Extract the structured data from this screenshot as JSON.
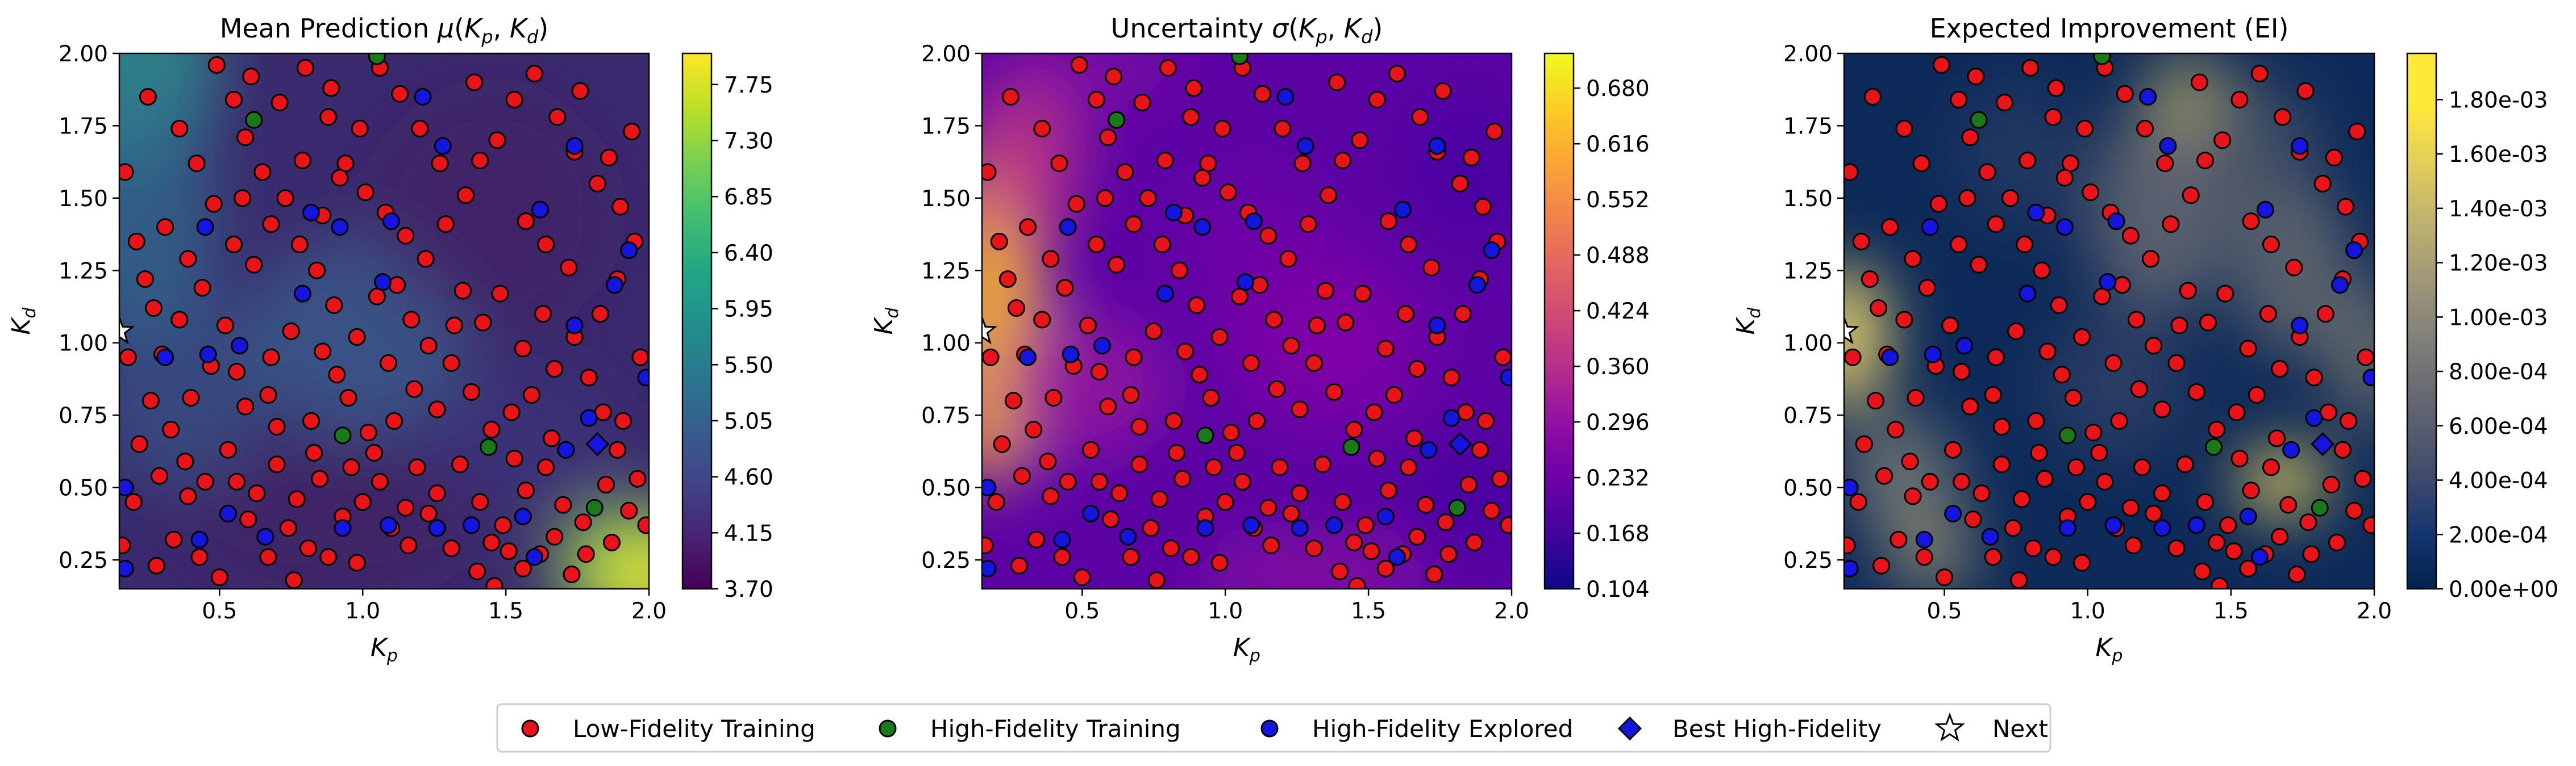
{
  "chart_data": [
    {
      "type": "heatmap",
      "title": "Mean Prediction μ(K_p, K_d)",
      "title_main": "Mean Prediction ",
      "title_math": "μ(",
      "xlabel": "K_p",
      "ylabel": "K_d",
      "xlim": [
        0.15,
        2.0
      ],
      "ylim": [
        0.15,
        2.0
      ],
      "x_ticks": [
        "0.5",
        "1.0",
        "1.5",
        "2.0"
      ],
      "y_ticks": [
        "0.25",
        "0.50",
        "0.75",
        "1.00",
        "1.25",
        "1.50",
        "1.75",
        "2.00"
      ],
      "colormap": "viridis",
      "colorbar_range": [
        3.7,
        8.0
      ],
      "colorbar_ticks": [
        "3.70",
        "4.15",
        "4.60",
        "5.05",
        "5.50",
        "5.95",
        "6.40",
        "6.85",
        "7.30",
        "7.75"
      ]
    },
    {
      "type": "heatmap",
      "title": "Uncertainty σ(K_p, K_d)",
      "title_main": "Uncertainty ",
      "title_math": "σ(",
      "xlabel": "K_p",
      "ylabel": "K_d",
      "xlim": [
        0.15,
        2.0
      ],
      "ylim": [
        0.15,
        2.0
      ],
      "x_ticks": [
        "0.5",
        "1.0",
        "1.5",
        "2.0"
      ],
      "y_ticks": [
        "0.25",
        "0.50",
        "0.75",
        "1.00",
        "1.25",
        "1.50",
        "1.75",
        "2.00"
      ],
      "colormap": "plasma",
      "colorbar_range": [
        0.104,
        0.72
      ],
      "colorbar_ticks": [
        "0.104",
        "0.168",
        "0.232",
        "0.296",
        "0.360",
        "0.424",
        "0.488",
        "0.552",
        "0.616",
        "0.680"
      ]
    },
    {
      "type": "heatmap",
      "title": "Expected Improvement (EI)",
      "xlabel": "K_p",
      "ylabel": "K_d",
      "xlim": [
        0.15,
        2.0
      ],
      "ylim": [
        0.15,
        2.0
      ],
      "x_ticks": [
        "0.5",
        "1.0",
        "1.5",
        "2.0"
      ],
      "y_ticks": [
        "0.25",
        "0.50",
        "0.75",
        "1.00",
        "1.25",
        "1.50",
        "1.75",
        "2.00"
      ],
      "colormap": "cividis",
      "colorbar_range": [
        0.0,
        0.00197
      ],
      "colorbar_ticks": [
        "0.00e+00",
        "2.00e-04",
        "4.00e-04",
        "6.00e-04",
        "8.00e-04",
        "1.00e-03",
        "1.20e-03",
        "1.40e-03",
        "1.60e-03",
        "1.80e-03"
      ]
    }
  ],
  "points": {
    "low_fidelity": [
      [
        0.25,
        1.85
      ],
      [
        0.17,
        1.59
      ],
      [
        0.21,
        1.35
      ],
      [
        0.27,
        1.12
      ],
      [
        0.31,
        1.4
      ],
      [
        0.36,
        1.08
      ],
      [
        0.18,
        0.95
      ],
      [
        0.26,
        0.8
      ],
      [
        0.22,
        0.65
      ],
      [
        0.39,
        0.47
      ],
      [
        0.29,
        0.54
      ],
      [
        0.34,
        0.32
      ],
      [
        0.43,
        0.26
      ],
      [
        0.5,
        0.19
      ],
      [
        0.45,
        0.52
      ],
      [
        0.56,
        0.52
      ],
      [
        0.63,
        0.48
      ],
      [
        0.67,
        0.26
      ],
      [
        0.74,
        0.36
      ],
      [
        0.81,
        0.29
      ],
      [
        0.76,
        0.18
      ],
      [
        0.88,
        0.26
      ],
      [
        0.98,
        0.24
      ],
      [
        0.59,
        0.78
      ],
      [
        0.67,
        0.82
      ],
      [
        0.7,
        0.71
      ],
      [
        0.82,
        0.73
      ],
      [
        0.91,
        0.89
      ],
      [
        0.86,
        0.97
      ],
      [
        0.95,
        0.81
      ],
      [
        1.02,
        0.69
      ],
      [
        1.06,
        0.52
      ],
      [
        1.0,
        0.45
      ],
      [
        1.1,
        0.36
      ],
      [
        1.16,
        0.3
      ],
      [
        1.23,
        0.41
      ],
      [
        1.31,
        0.29
      ],
      [
        1.4,
        0.21
      ],
      [
        1.46,
        0.16
      ],
      [
        1.51,
        0.28
      ],
      [
        1.56,
        0.22
      ],
      [
        1.62,
        0.27
      ],
      [
        1.67,
        0.33
      ],
      [
        1.73,
        0.2
      ],
      [
        1.78,
        0.27
      ],
      [
        1.87,
        0.31
      ],
      [
        1.93,
        0.42
      ],
      [
        1.96,
        0.53
      ],
      [
        1.89,
        0.63
      ],
      [
        1.84,
        0.76
      ],
      [
        1.79,
        0.88
      ],
      [
        1.74,
        1.02
      ],
      [
        1.67,
        0.91
      ],
      [
        1.59,
        0.82
      ],
      [
        1.52,
        0.76
      ],
      [
        1.45,
        0.7
      ],
      [
        1.38,
        0.83
      ],
      [
        1.31,
        0.93
      ],
      [
        1.23,
        0.99
      ],
      [
        1.17,
        1.08
      ],
      [
        1.12,
        1.2
      ],
      [
        1.05,
        1.16
      ],
      [
        0.98,
        1.02
      ],
      [
        0.9,
        1.13
      ],
      [
        0.84,
        1.25
      ],
      [
        0.78,
        1.34
      ],
      [
        0.73,
        1.5
      ],
      [
        0.65,
        1.59
      ],
      [
        0.59,
        1.71
      ],
      [
        0.55,
        1.84
      ],
      [
        0.49,
        1.96
      ],
      [
        0.61,
        1.92
      ],
      [
        0.71,
        1.83
      ],
      [
        0.8,
        1.95
      ],
      [
        0.88,
        1.78
      ],
      [
        0.94,
        1.62
      ],
      [
        1.01,
        1.52
      ],
      [
        1.08,
        1.45
      ],
      [
        1.15,
        1.37
      ],
      [
        1.22,
        1.29
      ],
      [
        1.29,
        1.41
      ],
      [
        1.36,
        1.51
      ],
      [
        1.41,
        1.63
      ],
      [
        1.47,
        1.7
      ],
      [
        1.53,
        1.84
      ],
      [
        1.6,
        1.93
      ],
      [
        1.68,
        1.78
      ],
      [
        1.74,
        1.66
      ],
      [
        1.82,
        1.55
      ],
      [
        1.9,
        1.47
      ],
      [
        1.95,
        1.35
      ],
      [
        1.89,
        1.22
      ],
      [
        1.83,
        1.1
      ],
      [
        1.42,
        1.07
      ],
      [
        1.48,
        1.17
      ],
      [
        1.35,
        1.18
      ],
      [
        1.27,
        1.62
      ],
      [
        1.2,
        1.74
      ],
      [
        1.13,
        1.86
      ],
      [
        1.06,
        1.95
      ],
      [
        0.99,
        1.74
      ],
      [
        0.92,
        1.57
      ],
      [
        0.86,
        1.44
      ],
      [
        0.79,
        1.63
      ],
      [
        0.68,
        1.41
      ],
      [
        0.62,
        1.27
      ],
      [
        0.55,
        1.34
      ],
      [
        0.48,
        1.48
      ],
      [
        0.42,
        1.62
      ],
      [
        0.36,
        1.74
      ],
      [
        0.44,
        1.19
      ],
      [
        0.52,
        1.06
      ],
      [
        0.47,
        0.92
      ],
      [
        0.4,
        0.81
      ],
      [
        0.33,
        0.7
      ],
      [
        0.38,
        0.59
      ],
      [
        0.53,
        0.63
      ],
      [
        0.6,
        0.39
      ],
      [
        0.7,
        0.58
      ],
      [
        0.77,
        0.46
      ],
      [
        0.85,
        0.53
      ],
      [
        0.93,
        0.4
      ],
      [
        1.04,
        0.62
      ],
      [
        1.11,
        0.73
      ],
      [
        1.19,
        0.57
      ],
      [
        1.26,
        0.48
      ],
      [
        1.34,
        0.58
      ],
      [
        1.41,
        0.45
      ],
      [
        1.49,
        0.37
      ],
      [
        1.57,
        0.49
      ],
      [
        1.64,
        0.57
      ],
      [
        1.7,
        0.44
      ],
      [
        1.77,
        0.38
      ],
      [
        1.85,
        0.51
      ],
      [
        1.91,
        0.73
      ],
      [
        1.97,
        0.95
      ],
      [
        1.72,
        1.26
      ],
      [
        1.64,
        1.34
      ],
      [
        1.57,
        1.42
      ],
      [
        1.63,
        1.1
      ],
      [
        1.56,
        0.98
      ],
      [
        1.32,
        1.06
      ],
      [
        1.26,
        0.77
      ],
      [
        1.18,
        0.84
      ],
      [
        1.09,
        0.93
      ],
      [
        0.75,
        1.04
      ],
      [
        0.68,
        0.95
      ],
      [
        0.56,
        0.9
      ],
      [
        0.3,
        0.96
      ],
      [
        0.24,
        1.22
      ],
      [
        0.39,
        1.29
      ],
      [
        0.58,
        1.5
      ],
      [
        0.89,
        1.88
      ],
      [
        1.39,
        1.9
      ],
      [
        1.76,
        1.87
      ],
      [
        1.94,
        1.73
      ],
      [
        1.86,
        1.64
      ],
      [
        0.2,
        0.45
      ],
      [
        0.16,
        0.3
      ],
      [
        0.28,
        0.23
      ],
      [
        1.99,
        0.37
      ],
      [
        1.66,
        0.67
      ],
      [
        1.15,
        0.43
      ],
      [
        0.96,
        0.57
      ],
      [
        0.83,
        0.62
      ],
      [
        1.45,
        0.31
      ],
      [
        1.53,
        0.6
      ]
    ],
    "high_fidelity": [
      [
        0.62,
        1.77
      ],
      [
        1.05,
        1.99
      ],
      [
        0.93,
        0.68
      ],
      [
        1.44,
        0.64
      ],
      [
        1.81,
        0.43
      ]
    ],
    "explored": [
      [
        0.45,
        1.4
      ],
      [
        0.82,
        1.45
      ],
      [
        1.21,
        1.85
      ],
      [
        1.62,
        1.46
      ],
      [
        1.93,
        1.32
      ],
      [
        1.74,
        1.06
      ],
      [
        1.79,
        0.74
      ],
      [
        1.71,
        0.63
      ],
      [
        1.56,
        0.4
      ],
      [
        1.38,
        0.37
      ],
      [
        1.09,
        0.37
      ],
      [
        0.93,
        0.36
      ],
      [
        0.66,
        0.33
      ],
      [
        0.43,
        0.32
      ],
      [
        0.57,
        0.99
      ],
      [
        0.79,
        1.17
      ],
      [
        0.92,
        1.4
      ],
      [
        1.07,
        1.21
      ],
      [
        0.31,
        0.95
      ],
      [
        0.17,
        0.5
      ],
      [
        0.17,
        0.22
      ],
      [
        0.53,
        0.41
      ],
      [
        1.74,
        1.68
      ],
      [
        0.46,
        0.96
      ],
      [
        1.28,
        1.68
      ],
      [
        1.88,
        1.2
      ],
      [
        1.99,
        0.88
      ],
      [
        1.26,
        0.36
      ],
      [
        1.6,
        0.26
      ],
      [
        1.1,
        1.42
      ]
    ],
    "best": [
      [
        1.82,
        0.65
      ]
    ],
    "next": [
      [
        0.15,
        1.04
      ]
    ]
  },
  "legend": {
    "items": [
      "Low-Fidelity Training",
      "High-Fidelity Training",
      "High-Fidelity Explored",
      "Best High-Fidelity",
      "Next"
    ],
    "placement": "bottom-center"
  },
  "colors": {
    "low_fidelity": "#e8141a",
    "high_fidelity": "#1a7a1a",
    "explored": "#1515e0",
    "best": "#1515e0"
  }
}
